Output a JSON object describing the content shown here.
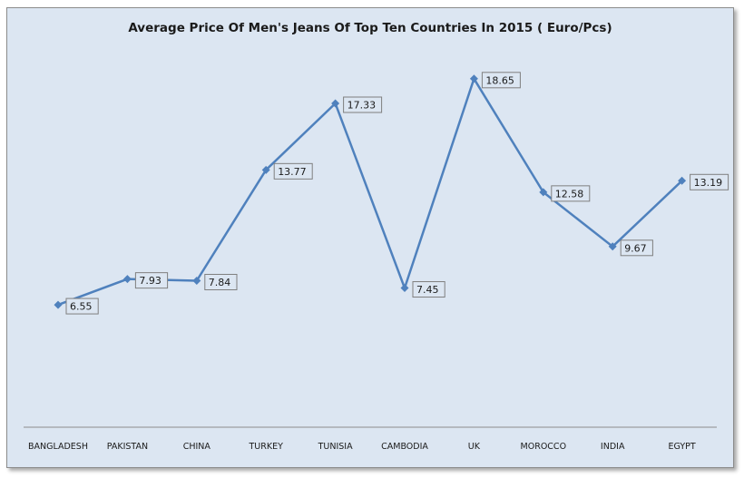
{
  "chart_data": {
    "type": "line",
    "title": "Average Price Of Men's Jeans Of Top Ten Countries In 2015 ( Euro/Pcs)",
    "categories": [
      "BANGLADESH",
      "PAKISTAN",
      "CHINA",
      "TURKEY",
      "TUNISIA",
      "CAMBODIA",
      "UK",
      "MOROCCO",
      "INDIA",
      "EGYPT"
    ],
    "series": [
      {
        "values": [
          6.55,
          7.93,
          7.84,
          13.77,
          17.33,
          7.45,
          18.65,
          12.58,
          9.67,
          13.19
        ]
      }
    ],
    "value_labels": [
      "6.55",
      "7.93",
      "7.84",
      "13.77",
      "17.33",
      "7.45",
      "18.65",
      "12.58",
      "9.67",
      "13.19"
    ],
    "xlabel": "",
    "ylabel": "",
    "ylim": [
      0,
      20
    ],
    "grid": false,
    "legend": "none",
    "colors": {
      "line": "#4f81bd",
      "background": "#dce6f2"
    }
  }
}
